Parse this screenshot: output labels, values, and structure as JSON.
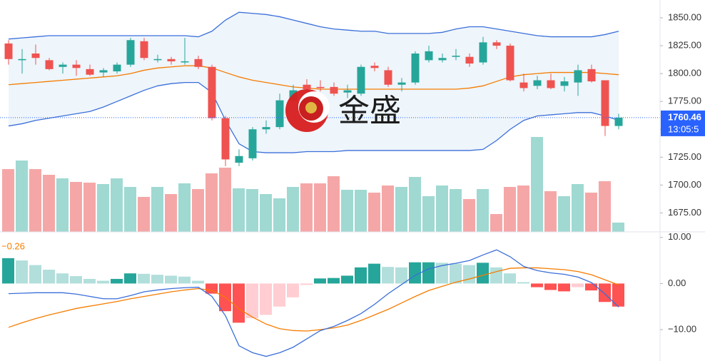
{
  "chart_data": {
    "type": "candlestick",
    "open": [
      1827,
      1812,
      1818,
      1812,
      1806,
      1808,
      1804,
      1801,
      1802,
      1808,
      1829,
      1813,
      1813,
      1810,
      1813,
      1806,
      1760,
      1720,
      1724,
      1750,
      1752,
      1776,
      1790,
      1788,
      1788,
      1783,
      1782,
      1807,
      1803,
      1790,
      1792,
      1812,
      1812,
      1815,
      1815,
      1810,
      1828,
      1825,
      1792,
      1789,
      1794,
      1789,
      1792,
      1804,
      1794,
      1753
    ],
    "high": [
      1830,
      1822,
      1826,
      1814,
      1810,
      1812,
      1808,
      1805,
      1810,
      1832,
      1832,
      1817,
      1815,
      1832,
      1816,
      1808,
      1762,
      1732,
      1752,
      1758,
      1782,
      1790,
      1795,
      1794,
      1792,
      1790,
      1808,
      1810,
      1806,
      1796,
      1820,
      1825,
      1818,
      1822,
      1818,
      1833,
      1830,
      1827,
      1800,
      1798,
      1800,
      1797,
      1808,
      1808,
      1794,
      1764
    ],
    "low": [
      1808,
      1800,
      1808,
      1803,
      1800,
      1798,
      1798,
      1797,
      1800,
      1806,
      1812,
      1810,
      1808,
      1808,
      1804,
      1758,
      1717,
      1717,
      1722,
      1746,
      1750,
      1774,
      1780,
      1784,
      1780,
      1778,
      1780,
      1802,
      1788,
      1784,
      1790,
      1810,
      1810,
      1812,
      1806,
      1808,
      1822,
      1793,
      1784,
      1786,
      1786,
      1784,
      1780,
      1792,
      1744,
      1750
    ],
    "close": [
      1813,
      1813,
      1814,
      1804,
      1808,
      1805,
      1799,
      1803,
      1808,
      1830,
      1814,
      1813,
      1811,
      1811,
      1806,
      1760,
      1723,
      1726,
      1750,
      1752,
      1776,
      1785,
      1786,
      1787,
      1782,
      1785,
      1806,
      1805,
      1790,
      1792,
      1818,
      1820,
      1814,
      1816,
      1809,
      1828,
      1825,
      1794,
      1787,
      1794,
      1787,
      1793,
      1803,
      1793,
      1753,
      1760.46
    ],
    "colors": {
      "up": "#26a69a",
      "down": "#ef5350"
    },
    "ylim": [
      1658,
      1866
    ],
    "yticks": [
      {
        "value": 1850,
        "label": "1850.00"
      },
      {
        "value": 1825,
        "label": "1825.00"
      },
      {
        "value": 1800,
        "label": "1800.00"
      },
      {
        "value": 1775,
        "label": "1775.00"
      },
      {
        "value": 1750,
        "label": "1750.00"
      },
      {
        "value": 1725,
        "label": "1725.00"
      },
      {
        "value": 1700,
        "label": "1700.00"
      },
      {
        "value": 1675,
        "label": "1675.00"
      }
    ],
    "current_price": {
      "value": 1760.46,
      "time": "13:05:5",
      "color": "#2962ff"
    },
    "bollinger": {
      "line_color": "#3b6fd9",
      "middle_color": "#f57c00",
      "fill": "#eef5fb",
      "upper": [
        1831,
        1832,
        1833,
        1834,
        1834,
        1834,
        1834,
        1834,
        1834,
        1834,
        1834,
        1834,
        1834,
        1834,
        1833,
        1838,
        1848,
        1855,
        1854,
        1853,
        1851,
        1848,
        1845,
        1842,
        1840,
        1839,
        1838,
        1838,
        1836,
        1836,
        1836,
        1836,
        1837,
        1840,
        1842,
        1842,
        1840,
        1838,
        1836,
        1834,
        1833,
        1833,
        1833,
        1833,
        1835,
        1838
      ],
      "middle": [
        1790,
        1791,
        1792,
        1793,
        1794,
        1795,
        1796,
        1797,
        1798,
        1800,
        1803,
        1805,
        1806,
        1807,
        1807,
        1805,
        1801,
        1797,
        1794,
        1792,
        1790,
        1788,
        1787,
        1786,
        1786,
        1786,
        1786,
        1786,
        1786,
        1786,
        1786,
        1786,
        1786,
        1786,
        1787,
        1789,
        1793,
        1797,
        1799,
        1800,
        1801,
        1801,
        1801,
        1801,
        1800,
        1799
      ],
      "lower": [
        1753,
        1755,
        1758,
        1760,
        1762,
        1764,
        1766,
        1770,
        1775,
        1780,
        1785,
        1789,
        1791,
        1792,
        1792,
        1783,
        1758,
        1737,
        1730,
        1729,
        1729,
        1729,
        1730,
        1730,
        1730,
        1731,
        1731,
        1731,
        1731,
        1731,
        1731,
        1731,
        1731,
        1731,
        1731,
        1732,
        1740,
        1750,
        1758,
        1762,
        1763,
        1764,
        1765,
        1765,
        1762,
        1758
      ]
    },
    "volume": {
      "colors": {
        "up": "#9fd9d2",
        "down": "#f5a7a7"
      },
      "values": [
        88,
        100,
        88,
        80,
        75,
        70,
        69,
        67,
        75,
        63,
        49,
        63,
        53,
        68,
        60,
        82,
        90,
        61,
        60,
        53,
        47,
        63,
        68,
        68,
        78,
        59,
        59,
        55,
        65,
        63,
        77,
        50,
        65,
        60,
        46,
        60,
        25,
        63,
        65,
        133,
        57,
        50,
        67,
        55,
        71,
        13
      ]
    },
    "macd": {
      "label": "−0.26",
      "label_color": "#f57c00",
      "macd_color": "#3b6fd9",
      "signal_color": "#f57c00",
      "colors": {
        "pos_up": "#26a69a",
        "pos_down": "#b2dfdb",
        "neg_down": "#ff5252",
        "neg_up": "#ffcdd2"
      },
      "ylim": [
        -16.8,
        11.2
      ],
      "yticks": [
        {
          "value": 10,
          "label": "10.00"
        },
        {
          "value": 0,
          "label": "0.00"
        },
        {
          "value": -10,
          "label": "−10.00"
        }
      ],
      "histogram": [
        5.5,
        5.0,
        4.0,
        3.0,
        2.2,
        1.6,
        1.0,
        0.6,
        1.0,
        2.2,
        2.1,
        1.9,
        1.7,
        1.5,
        0.6,
        -2.2,
        -6.0,
        -8.5,
        -7.5,
        -6.8,
        -5.0,
        -3.0,
        -0.3,
        1.1,
        1.2,
        1.7,
        3.5,
        4.3,
        3.6,
        3.5,
        4.6,
        4.6,
        4.5,
        4.3,
        4.0,
        4.5,
        3.5,
        2.2,
        0.3,
        -0.8,
        -1.4,
        -1.7,
        -0.8,
        -1.5,
        -4.0,
        -5.0
      ],
      "macd": [
        -2.2,
        -2.1,
        -2.0,
        -2.0,
        -2.0,
        -2.3,
        -2.8,
        -3.3,
        -3.3,
        -2.6,
        -1.8,
        -1.4,
        -1.1,
        -0.9,
        -0.8,
        -2.8,
        -7.0,
        -13.5,
        -15.0,
        -15.8,
        -15.0,
        -13.8,
        -12.0,
        -10.2,
        -9.3,
        -8.0,
        -6.5,
        -4.5,
        -2.2,
        -0.2,
        1.8,
        3.2,
        3.9,
        4.4,
        5.0,
        6.2,
        7.3,
        5.8,
        3.7,
        2.8,
        2.3,
        2.0,
        1.4,
        0.2,
        -2.3,
        -5.1
      ],
      "signal": [
        -9.5,
        -8.5,
        -7.6,
        -6.8,
        -6.1,
        -5.4,
        -4.9,
        -4.4,
        -3.9,
        -3.3,
        -2.8,
        -2.3,
        -1.8,
        -1.4,
        -1.1,
        -1.5,
        -3.0,
        -5.5,
        -7.3,
        -8.8,
        -9.8,
        -10.2,
        -10.3,
        -10.0,
        -9.6,
        -9.0,
        -8.0,
        -6.8,
        -5.6,
        -4.2,
        -2.8,
        -1.5,
        -0.6,
        0.3,
        1.0,
        1.8,
        2.6,
        3.3,
        3.4,
        3.4,
        3.2,
        3.0,
        2.6,
        1.9,
        0.8,
        -0.3
      ]
    }
  },
  "watermark": {
    "text": "金盛"
  }
}
